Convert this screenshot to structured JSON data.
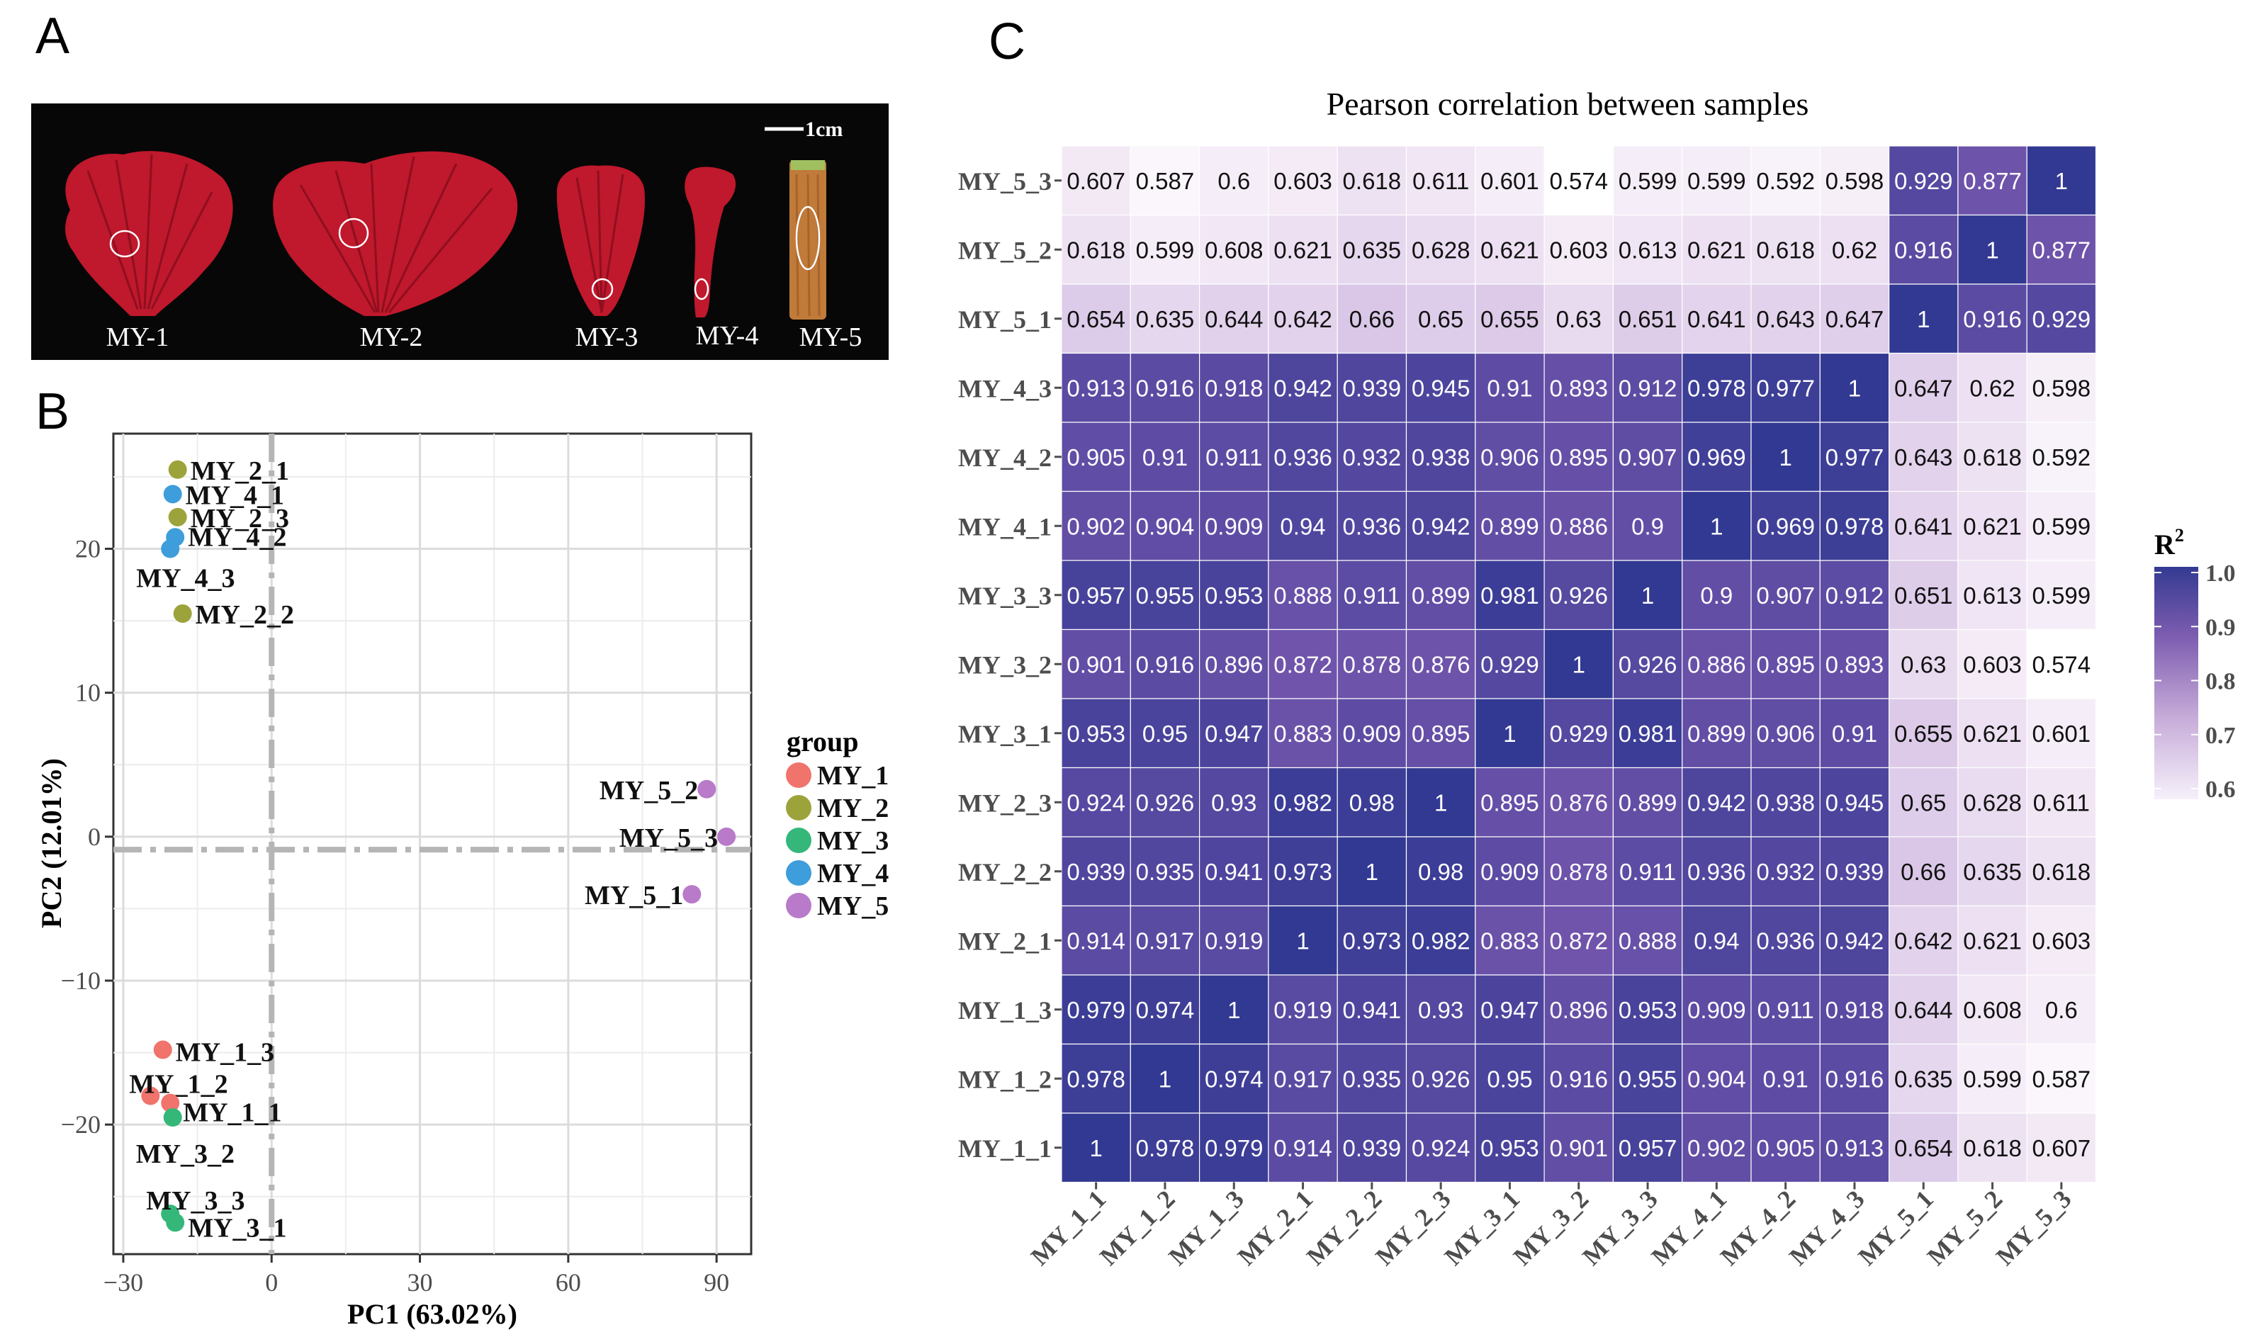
{
  "panels": {
    "a": "A",
    "b": "B",
    "c": "C"
  },
  "photo": {
    "scale_bar": "1cm",
    "labels": [
      "MY-1",
      "MY-2",
      "MY-3",
      "MY-4",
      "MY-5"
    ],
    "petal_color": "#c0182c",
    "stem_color": "#c07a3a"
  },
  "pca": {
    "xlabel": "PC1 (63.02%)",
    "ylabel": "PC2 (12.01%)",
    "xticks": [
      "−30",
      "0",
      "30",
      "60",
      "90"
    ],
    "yticks": [
      "20",
      "10",
      "0",
      "−10",
      "−20"
    ],
    "legend_title": "group",
    "groups": [
      {
        "name": "MY_1",
        "color": "#f0736c"
      },
      {
        "name": "MY_2",
        "color": "#9da33b"
      },
      {
        "name": "MY_3",
        "color": "#35b779"
      },
      {
        "name": "MY_4",
        "color": "#3e9ddb"
      },
      {
        "name": "MY_5",
        "color": "#b87ac9"
      }
    ]
  },
  "chart_data": [
    {
      "type": "scatter",
      "title": "",
      "xlabel": "PC1 (63.02%)",
      "ylabel": "PC2 (12.01%)",
      "xlim": [
        -32,
        97
      ],
      "ylim": [
        -29,
        28
      ],
      "points": [
        {
          "label": "MY_2_1",
          "group": "MY_2",
          "x": -19,
          "y": 25.5
        },
        {
          "label": "MY_4_1",
          "group": "MY_4",
          "x": -20,
          "y": 23.8
        },
        {
          "label": "MY_2_3",
          "group": "MY_2",
          "x": -19,
          "y": 22.2
        },
        {
          "label": "MY_4_2",
          "group": "MY_4",
          "x": -19.5,
          "y": 20.8
        },
        {
          "label": "MY_4_3",
          "group": "MY_4",
          "x": -20.5,
          "y": 20.0
        },
        {
          "label": "MY_2_2",
          "group": "MY_2",
          "x": -18,
          "y": 15.5
        },
        {
          "label": "MY_5_2",
          "group": "MY_5",
          "x": 88,
          "y": 3.3
        },
        {
          "label": "MY_5_3",
          "group": "MY_5",
          "x": 92,
          "y": 0.0
        },
        {
          "label": "MY_5_1",
          "group": "MY_5",
          "x": 85,
          "y": -4.0
        },
        {
          "label": "MY_1_3",
          "group": "MY_1",
          "x": -22,
          "y": -14.8
        },
        {
          "label": "MY_1_2",
          "group": "MY_1",
          "x": -24.5,
          "y": -18.0
        },
        {
          "label": "MY_1_1",
          "group": "MY_1",
          "x": -20.5,
          "y": -18.5
        },
        {
          "label": "MY_3_2",
          "group": "MY_3",
          "x": -20,
          "y": -19.5
        },
        {
          "label": "MY_3_3",
          "group": "MY_3",
          "x": -20.5,
          "y": -26.2
        },
        {
          "label": "MY_3_1",
          "group": "MY_3",
          "x": -19.5,
          "y": -26.8
        }
      ]
    },
    {
      "type": "heatmap",
      "title": "Pearson correlation between samples",
      "legend_title": "R",
      "legend_sup": "2",
      "legend_ticks": [
        "1.0",
        "0.9",
        "0.8",
        "0.7",
        "0.6"
      ],
      "range": [
        0.574,
        1.0
      ],
      "samples": [
        "MY_1_1",
        "MY_1_2",
        "MY_1_3",
        "MY_2_1",
        "MY_2_2",
        "MY_2_3",
        "MY_3_1",
        "MY_3_2",
        "MY_3_3",
        "MY_4_1",
        "MY_4_2",
        "MY_4_3",
        "MY_5_1",
        "MY_5_2",
        "MY_5_3"
      ],
      "matrix": [
        [
          "1",
          "0.978",
          "0.979",
          "0.914",
          "0.939",
          "0.924",
          "0.953",
          "0.901",
          "0.957",
          "0.902",
          "0.905",
          "0.913",
          "0.654",
          "0.618",
          "0.607"
        ],
        [
          "0.978",
          "1",
          "0.974",
          "0.917",
          "0.935",
          "0.926",
          "0.95",
          "0.916",
          "0.955",
          "0.904",
          "0.91",
          "0.916",
          "0.635",
          "0.599",
          "0.587"
        ],
        [
          "0.979",
          "0.974",
          "1",
          "0.919",
          "0.941",
          "0.93",
          "0.947",
          "0.896",
          "0.953",
          "0.909",
          "0.911",
          "0.918",
          "0.644",
          "0.608",
          "0.6"
        ],
        [
          "0.914",
          "0.917",
          "0.919",
          "1",
          "0.973",
          "0.982",
          "0.883",
          "0.872",
          "0.888",
          "0.94",
          "0.936",
          "0.942",
          "0.642",
          "0.621",
          "0.603"
        ],
        [
          "0.939",
          "0.935",
          "0.941",
          "0.973",
          "1",
          "0.98",
          "0.909",
          "0.878",
          "0.911",
          "0.936",
          "0.932",
          "0.939",
          "0.66",
          "0.635",
          "0.618"
        ],
        [
          "0.924",
          "0.926",
          "0.93",
          "0.982",
          "0.98",
          "1",
          "0.895",
          "0.876",
          "0.899",
          "0.942",
          "0.938",
          "0.945",
          "0.65",
          "0.628",
          "0.611"
        ],
        [
          "0.953",
          "0.95",
          "0.947",
          "0.883",
          "0.909",
          "0.895",
          "1",
          "0.929",
          "0.981",
          "0.899",
          "0.906",
          "0.91",
          "0.655",
          "0.621",
          "0.601"
        ],
        [
          "0.901",
          "0.916",
          "0.896",
          "0.872",
          "0.878",
          "0.876",
          "0.929",
          "1",
          "0.926",
          "0.886",
          "0.895",
          "0.893",
          "0.63",
          "0.603",
          "0.574"
        ],
        [
          "0.957",
          "0.955",
          "0.953",
          "0.888",
          "0.911",
          "0.899",
          "0.981",
          "0.926",
          "1",
          "0.9",
          "0.907",
          "0.912",
          "0.651",
          "0.613",
          "0.599"
        ],
        [
          "0.902",
          "0.904",
          "0.909",
          "0.94",
          "0.936",
          "0.942",
          "0.899",
          "0.886",
          "0.9",
          "1",
          "0.969",
          "0.978",
          "0.641",
          "0.621",
          "0.599"
        ],
        [
          "0.905",
          "0.91",
          "0.911",
          "0.936",
          "0.932",
          "0.938",
          "0.906",
          "0.895",
          "0.907",
          "0.969",
          "1",
          "0.977",
          "0.643",
          "0.618",
          "0.592"
        ],
        [
          "0.913",
          "0.916",
          "0.918",
          "0.942",
          "0.939",
          "0.945",
          "0.91",
          "0.893",
          "0.912",
          "0.978",
          "0.977",
          "1",
          "0.647",
          "0.62",
          "0.598"
        ],
        [
          "0.654",
          "0.635",
          "0.644",
          "0.642",
          "0.66",
          "0.65",
          "0.655",
          "0.63",
          "0.651",
          "0.641",
          "0.643",
          "0.647",
          "1",
          "0.916",
          "0.929"
        ],
        [
          "0.618",
          "0.599",
          "0.608",
          "0.621",
          "0.635",
          "0.628",
          "0.621",
          "0.603",
          "0.613",
          "0.621",
          "0.618",
          "0.62",
          "0.916",
          "1",
          "0.877"
        ],
        [
          "0.607",
          "0.587",
          "0.6",
          "0.603",
          "0.618",
          "0.611",
          "0.601",
          "0.574",
          "0.599",
          "0.599",
          "0.592",
          "0.598",
          "0.929",
          "0.877",
          "1"
        ]
      ]
    }
  ]
}
